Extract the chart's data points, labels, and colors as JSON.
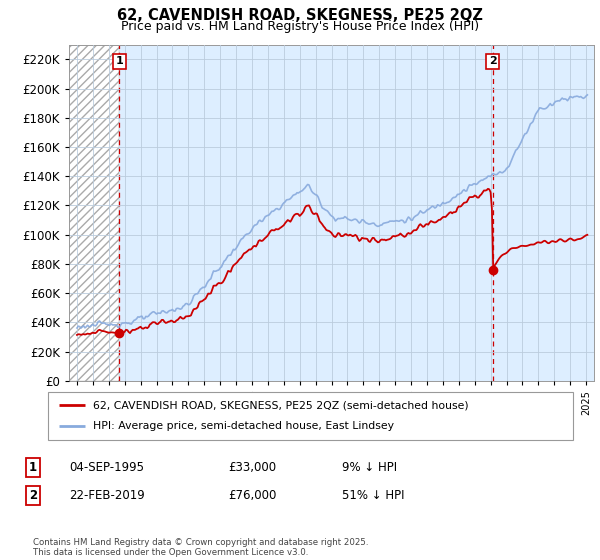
{
  "title": "62, CAVENDISH ROAD, SKEGNESS, PE25 2QZ",
  "subtitle": "Price paid vs. HM Land Registry's House Price Index (HPI)",
  "legend_line1": "62, CAVENDISH ROAD, SKEGNESS, PE25 2QZ (semi-detached house)",
  "legend_line2": "HPI: Average price, semi-detached house, East Lindsey",
  "annotation1_date": "04-SEP-1995",
  "annotation1_price": "£33,000",
  "annotation1_hpi": "9% ↓ HPI",
  "annotation2_date": "22-FEB-2019",
  "annotation2_price": "£76,000",
  "annotation2_hpi": "51% ↓ HPI",
  "footnote": "Contains HM Land Registry data © Crown copyright and database right 2025.\nThis data is licensed under the Open Government Licence v3.0.",
  "sale1_year": 1995.67,
  "sale1_price": 33000,
  "sale2_year": 2019.13,
  "sale2_price": 76000,
  "hatch_region_end": 1995.67,
  "line_color_price": "#cc0000",
  "line_color_hpi": "#88aadd",
  "dashed_color": "#cc0000",
  "background_color": "#ffffff",
  "plot_bg_color": "#ddeeff",
  "grid_color": "#bbccdd",
  "ylim": [
    0,
    230000
  ],
  "yticks": [
    0,
    20000,
    40000,
    60000,
    80000,
    100000,
    120000,
    140000,
    160000,
    180000,
    200000,
    220000
  ],
  "xlim": [
    1992.5,
    2025.5
  ]
}
